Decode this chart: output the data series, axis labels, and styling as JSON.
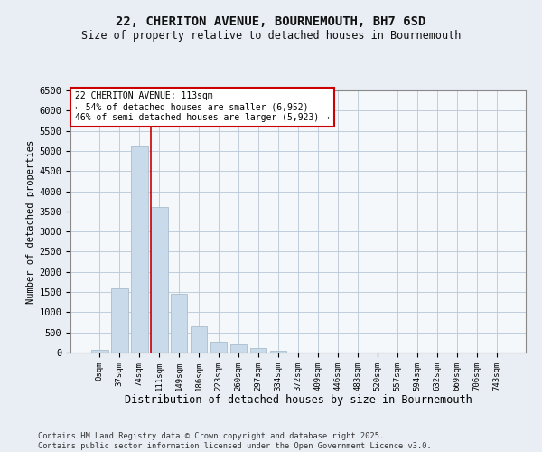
{
  "title_line1": "22, CHERITON AVENUE, BOURNEMOUTH, BH7 6SD",
  "title_line2": "Size of property relative to detached houses in Bournemouth",
  "xlabel": "Distribution of detached houses by size in Bournemouth",
  "ylabel": "Number of detached properties",
  "bar_color": "#c9daea",
  "bar_edgecolor": "#aabdcc",
  "annotation_line_color": "#cc0000",
  "annotation_box_edgecolor": "#cc0000",
  "annotation_line1": "22 CHERITON AVENUE: 113sqm",
  "annotation_line2": "← 54% of detached houses are smaller (6,952)",
  "annotation_line3": "46% of semi-detached houses are larger (5,923) →",
  "categories": [
    "0sqm",
    "37sqm",
    "74sqm",
    "111sqm",
    "149sqm",
    "186sqm",
    "223sqm",
    "260sqm",
    "297sqm",
    "334sqm",
    "372sqm",
    "409sqm",
    "446sqm",
    "483sqm",
    "520sqm",
    "557sqm",
    "594sqm",
    "632sqm",
    "669sqm",
    "706sqm",
    "743sqm"
  ],
  "values": [
    70,
    1600,
    5100,
    3600,
    1450,
    650,
    280,
    200,
    110,
    50,
    0,
    0,
    0,
    0,
    0,
    0,
    0,
    0,
    0,
    0,
    0
  ],
  "ylim": [
    0,
    6500
  ],
  "yticks": [
    0,
    500,
    1000,
    1500,
    2000,
    2500,
    3000,
    3500,
    4000,
    4500,
    5000,
    5500,
    6000,
    6500
  ],
  "annotation_bar_index": 3,
  "footnote_line1": "Contains HM Land Registry data © Crown copyright and database right 2025.",
  "footnote_line2": "Contains public sector information licensed under the Open Government Licence v3.0.",
  "background_color": "#e8eef4",
  "plot_background": "#f5f8fb"
}
